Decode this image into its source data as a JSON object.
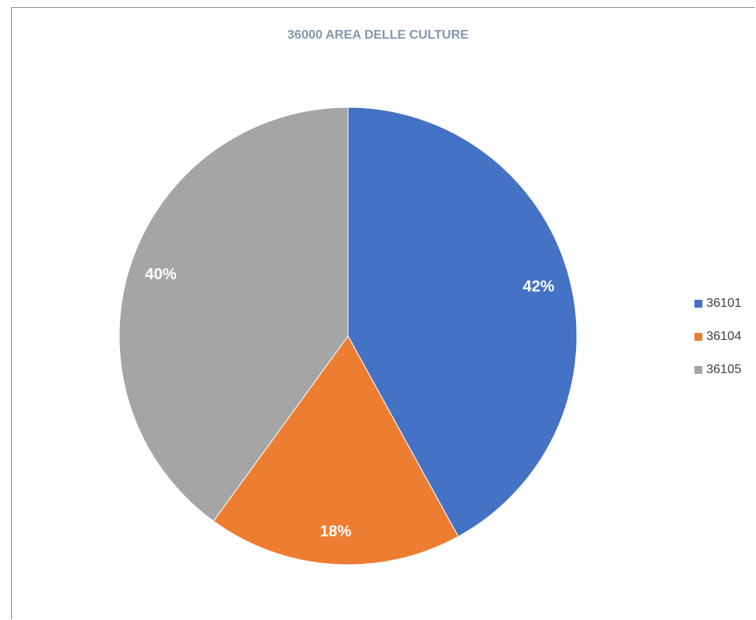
{
  "chart_data": {
    "type": "pie",
    "title": "36000 AREA DELLE CULTURE",
    "categories": [
      "36101",
      "36104",
      "36105"
    ],
    "values": [
      42,
      18,
      40
    ],
    "labels": [
      "42%",
      "18%",
      "40%"
    ],
    "colors": [
      "#4472c4",
      "#ed7d31",
      "#a5a5a5"
    ],
    "legend_position": "right"
  }
}
